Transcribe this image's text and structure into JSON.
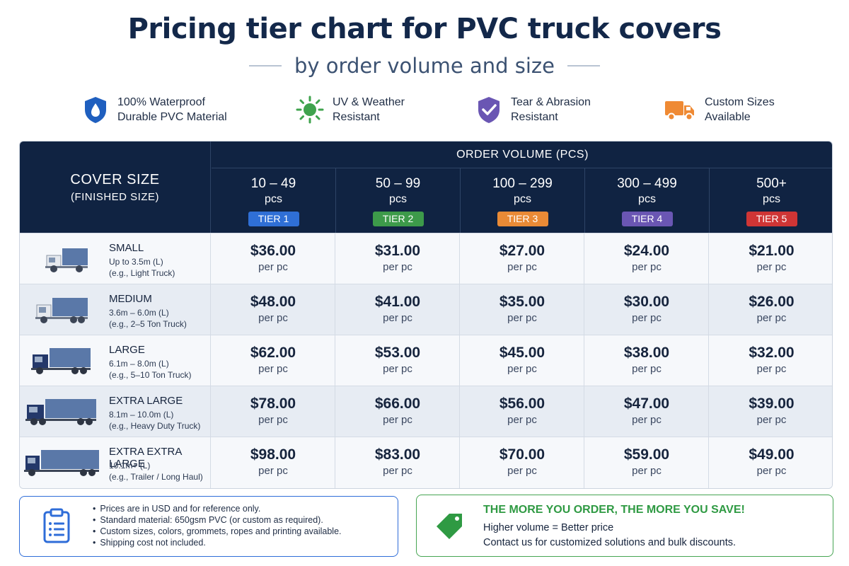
{
  "title": "Pricing tier chart for PVC truck covers",
  "subtitle": "by order volume and size",
  "features": [
    {
      "icon": "water-drop-shield-icon",
      "text": "100% Waterproof\nDurable PVC Material"
    },
    {
      "icon": "sun-icon",
      "text": "UV & Weather\nResistant"
    },
    {
      "icon": "check-shield-icon",
      "text": "Tear & Abrasion\nResistant"
    },
    {
      "icon": "truck-icon",
      "text": "Custom Sizes\nAvailable"
    }
  ],
  "table": {
    "size_header": "COVER SIZE",
    "size_subheader": "(FINISHED SIZE)",
    "volume_header": "ORDER VOLUME (PCS)",
    "tiers": [
      {
        "range": "10 – 49",
        "unit": "pcs",
        "badge": "TIER 1",
        "color": "#2f6fd6"
      },
      {
        "range": "50 – 99",
        "unit": "pcs",
        "badge": "TIER 2",
        "color": "#3d9a4a"
      },
      {
        "range": "100 – 299",
        "unit": "pcs",
        "badge": "TIER 3",
        "color": "#e98a36"
      },
      {
        "range": "300 – 499",
        "unit": "pcs",
        "badge": "TIER 4",
        "color": "#6a56b3"
      },
      {
        "range": "500+",
        "unit": "pcs",
        "badge": "TIER 5",
        "color": "#cf3535"
      }
    ],
    "rows": [
      {
        "name": "SMALL",
        "desc1": "Up to 3.5m (L)",
        "desc2": "(e.g., Light Truck)",
        "prices": [
          "$36.00",
          "$31.00",
          "$27.00",
          "$24.00",
          "$21.00"
        ]
      },
      {
        "name": "MEDIUM",
        "desc1": "3.6m – 6.0m (L)",
        "desc2": "(e.g., 2–5 Ton Truck)",
        "prices": [
          "$48.00",
          "$41.00",
          "$35.00",
          "$30.00",
          "$26.00"
        ]
      },
      {
        "name": "LARGE",
        "desc1": "6.1m – 8.0m (L)",
        "desc2": "(e.g., 5–10 Ton Truck)",
        "prices": [
          "$62.00",
          "$53.00",
          "$45.00",
          "$38.00",
          "$32.00"
        ]
      },
      {
        "name": "EXTRA LARGE",
        "desc1": "8.1m – 10.0m (L)",
        "desc2": "(e.g., Heavy Duty Truck)",
        "prices": [
          "$78.00",
          "$66.00",
          "$56.00",
          "$47.00",
          "$39.00"
        ]
      },
      {
        "name": "EXTRA EXTRA LARGE",
        "desc1": "10.1m+ (L)",
        "desc2": "(e.g., Trailer / Long Haul)",
        "prices": [
          "$98.00",
          "$83.00",
          "$70.00",
          "$59.00",
          "$49.00"
        ]
      }
    ],
    "per_label": "per pc"
  },
  "notes": [
    "Prices are in USD and for reference only.",
    "Standard material: 650gsm PVC (or custom as required).",
    "Custom sizes, colors, grommets, ropes and printing available.",
    "Shipping cost not included."
  ],
  "save": {
    "title": "THE MORE YOU ORDER, THE MORE YOU SAVE!",
    "line1": "Higher volume = Better price",
    "line2": "Contact us for customized solutions and bulk discounts."
  },
  "colors": {
    "navy": "#102342",
    "accent_blue": "#2f6dd8",
    "accent_green": "#2f9a43",
    "truck_cargo": "#5a78a8"
  }
}
